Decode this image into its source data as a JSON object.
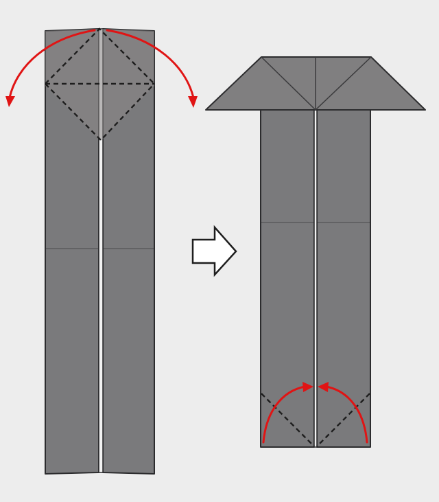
{
  "diagram": {
    "description_steps": 2,
    "colors": {
      "background": "#ededed",
      "paper": "#7a7a7c",
      "outline": "#2c2c2e",
      "fold_arrow": "#e01414",
      "step_arrow_fill": "#ffffff"
    },
    "icons": {
      "step_arrow": "right-arrow-icon",
      "fold_arrows": "curved-red-arrow-icon"
    }
  }
}
